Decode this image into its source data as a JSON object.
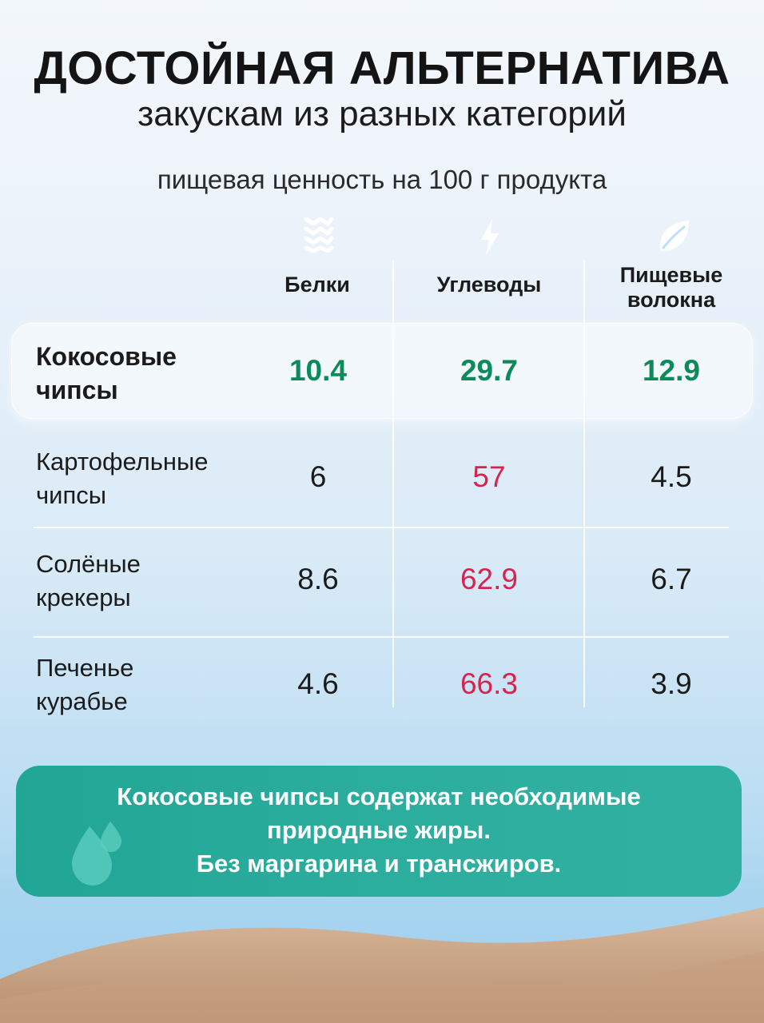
{
  "header": {
    "title": "ДОСТОЙНАЯ АЛЬТЕРНАТИВА",
    "subtitle": "закускам из разных категорий",
    "note": "пищевая ценность на 100 г продукта"
  },
  "columns": [
    {
      "label": "Белки",
      "icon": "protein-stripes-icon"
    },
    {
      "label": "Углеводы",
      "icon": "lightning-icon"
    },
    {
      "label": "Пищевые волокна",
      "label_line1": "Пищевые",
      "label_line2": "волокна",
      "icon": "leaf-icon"
    }
  ],
  "rows": [
    {
      "label_line1": "Кокосовые",
      "label_line2": "чипсы",
      "values": [
        "10.4",
        "29.7",
        "12.9"
      ],
      "highlight": true
    },
    {
      "label_line1": "Картофельные",
      "label_line2": "чипсы",
      "values": [
        "6",
        "57",
        "4.5"
      ]
    },
    {
      "label_line1": "Солёные",
      "label_line2": "крекеры",
      "values": [
        "8.6",
        "62.9",
        "6.7"
      ]
    },
    {
      "label_line1": "Печенье",
      "label_line2": "курабье",
      "values": [
        "4.6",
        "66.3",
        "3.9"
      ]
    }
  ],
  "banner": {
    "line1": "Кокосовые чипсы содержат необходимые",
    "line2": "природные жиры.",
    "line3": "Без маргарина и трансжиров."
  },
  "colors": {
    "good": "#0d8a5a",
    "bad": "#d8234e",
    "accent": "#21a595",
    "icon": "#ffffff"
  }
}
